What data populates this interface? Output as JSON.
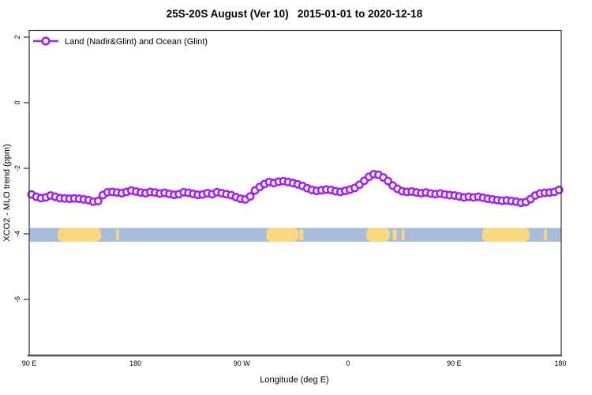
{
  "title": "25S-20S August (Ver 10)   2015-01-01 to 2020-12-18",
  "legend": {
    "label": "Land (Nadir&Glint) and Ocean (Glint)",
    "marker": "open-circle",
    "color": "#A122F0"
  },
  "axes": {
    "x": {
      "label": "Longitude (deg E)",
      "ticks": [
        "90 E",
        "180",
        "90 W",
        "0",
        "90 E",
        "180"
      ],
      "tick_lons": [
        90,
        180,
        270,
        360,
        450,
        540
      ],
      "range": [
        90,
        540
      ]
    },
    "y": {
      "label": "XCO2 - MLO trend (ppm)",
      "ticks": [
        "2",
        "0",
        "-2",
        "-4",
        "-6"
      ],
      "tick_values": [
        2,
        0,
        -2,
        -4,
        -6
      ],
      "range": [
        2.2,
        -7.7
      ]
    }
  },
  "chart_data": {
    "type": "line",
    "title": "25S-20S August (Ver 10)   2015-01-01 to 2020-12-18",
    "xlabel": "Longitude (deg E)",
    "ylabel": "XCO2 - MLO trend (ppm)",
    "xlim": [
      90,
      540
    ],
    "ylim": [
      -7.7,
      2.2
    ],
    "grid": false,
    "legend_position": "top-left",
    "series": [
      {
        "name": "Land (Nadir&Glint) and Ocean (Glint)",
        "color": "#A122F0",
        "marker": "open-circle",
        "lon_start": 92,
        "lon_step": 4.02,
        "values": [
          -2.8,
          -2.87,
          -2.91,
          -2.89,
          -2.83,
          -2.87,
          -2.91,
          -2.92,
          -2.93,
          -2.92,
          -2.93,
          -2.95,
          -2.97,
          -3.02,
          -3.0,
          -2.82,
          -2.73,
          -2.72,
          -2.74,
          -2.76,
          -2.72,
          -2.68,
          -2.71,
          -2.74,
          -2.76,
          -2.72,
          -2.74,
          -2.77,
          -2.75,
          -2.78,
          -2.81,
          -2.79,
          -2.73,
          -2.75,
          -2.78,
          -2.81,
          -2.8,
          -2.76,
          -2.79,
          -2.73,
          -2.76,
          -2.79,
          -2.82,
          -2.88,
          -2.93,
          -2.95,
          -2.86,
          -2.68,
          -2.57,
          -2.48,
          -2.42,
          -2.45,
          -2.41,
          -2.39,
          -2.42,
          -2.45,
          -2.49,
          -2.54,
          -2.61,
          -2.66,
          -2.69,
          -2.67,
          -2.65,
          -2.66,
          -2.7,
          -2.72,
          -2.69,
          -2.65,
          -2.6,
          -2.5,
          -2.38,
          -2.26,
          -2.18,
          -2.2,
          -2.28,
          -2.39,
          -2.53,
          -2.63,
          -2.7,
          -2.72,
          -2.71,
          -2.74,
          -2.76,
          -2.74,
          -2.77,
          -2.79,
          -2.77,
          -2.8,
          -2.82,
          -2.83,
          -2.86,
          -2.89,
          -2.87,
          -2.89,
          -2.87,
          -2.9,
          -2.93,
          -2.95,
          -2.97,
          -2.99,
          -2.98,
          -3.0,
          -3.02,
          -3.05,
          -3.03,
          -2.94,
          -2.83,
          -2.77,
          -2.75,
          -2.74,
          -2.72,
          -2.66
        ]
      }
    ],
    "land_ocean_band": {
      "description": "ocean/land strip along latitude band",
      "y_top": -3.82,
      "y_bottom": -4.24,
      "ocean_color": "#A8BDDC",
      "land_color": "#FBD87E",
      "ocean_extent": [
        90,
        540
      ],
      "land_segments": [
        {
          "start": 114,
          "end": 151,
          "minor": false
        },
        {
          "start": 163.5,
          "end": 166,
          "minor": true
        },
        {
          "start": 290.5,
          "end": 318,
          "minor": false
        },
        {
          "start": 318.5,
          "end": 322,
          "minor": true
        },
        {
          "start": 375,
          "end": 395,
          "minor": false
        },
        {
          "start": 397.5,
          "end": 401,
          "minor": true
        },
        {
          "start": 405,
          "end": 407.6,
          "minor": true
        },
        {
          "start": 473,
          "end": 513.3,
          "minor": false
        },
        {
          "start": 525.5,
          "end": 528,
          "minor": true
        }
      ]
    }
  }
}
